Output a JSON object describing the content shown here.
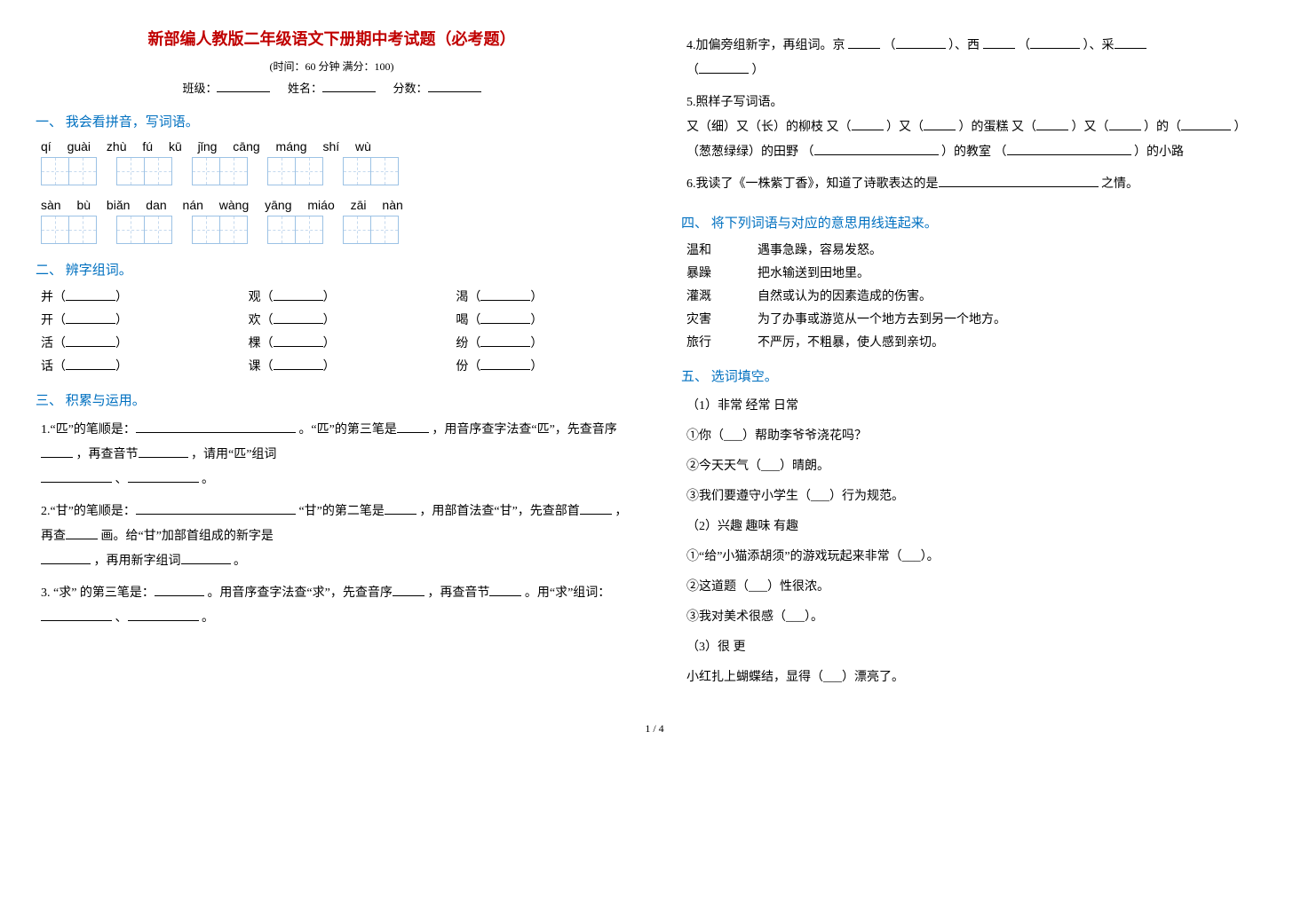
{
  "title": "新部编人教版二年级语文下册期中考试题（必考题）",
  "subtitle": "(时间：60 分钟   满分：100)",
  "meta": {
    "class_label": "班级：",
    "name_label": "姓名：",
    "score_label": "分数："
  },
  "sec1": {
    "head": "一、 我会看拼音，写词语。",
    "row1": {
      "pinyin": "qí    guài    zhù  fú       kū    jǐng     cāng máng    shí    wù",
      "groups": [
        2,
        2,
        2,
        2,
        2
      ]
    },
    "row2": {
      "pinyin": "sàn   bù       biǎn  dan    nán  wàng    yāng miáo     zāi    nàn",
      "groups": [
        2,
        2,
        2,
        2,
        2
      ]
    }
  },
  "sec2": {
    "head": "二、 辨字组词。",
    "rows": [
      [
        "并（",
        "）",
        "观（",
        "）",
        "渴（",
        "）"
      ],
      [
        "开（",
        "）",
        "欢（",
        "）",
        "喝（",
        "）"
      ],
      [
        "活（",
        "）",
        "棵（",
        "）",
        "纷（",
        "）"
      ],
      [
        "话（",
        "）",
        "课（",
        "）",
        "份（",
        "）"
      ]
    ]
  },
  "sec3": {
    "head": "三、 积累与运用。",
    "q1a": "1.“匹”的笔顺是：",
    "q1b": " 。“匹”的第三笔是",
    "q1c": " ，用音序查字法查“匹”，先查音序",
    "q1d": " ，再查音节",
    "q1e": " ，请用“匹”组词",
    "q1f": " 、",
    "q1g": "  。",
    "q2a": "2.“甘”的笔顺是：",
    "q2b": "  “甘”的第二笔是",
    "q2c": " ，用部首法查“甘”，先查部首",
    "q2d": " ，再查",
    "q2e": " 画。给“甘”加部首组成的新字是",
    "q2f": " ，再用新字组词",
    "q2g": " 。",
    "q3a": "3. “求” 的第三笔是：",
    "q3b": "。用音序查字法查“求”，先查音序",
    "q3c": " ，再查音节",
    "q3d": " 。用“求”组词：",
    "q3e": " 、",
    "q3f": "  。",
    "q4a": "4.加偏旁组新字，再组词。京 ",
    "q4b": " （",
    "q4c": "）、西 ",
    "q4d": " （",
    "q4e": "）、采",
    "q4f": "（",
    "q4g": "）",
    "q5a": "5.照样子写词语。",
    "q5b": "又（细）又（长）的柳枝   又（",
    "q5c": "）又（",
    "q5d": "）的蛋糕    又（",
    "q5e": "）又（",
    "q5f": "）的（",
    "q5g": "）",
    "q5h": "（葱葱绿绿）的田野     （",
    "q5i": "）的教室        （",
    "q5j": "）的小路",
    "q6a": "6.我读了《一株紫丁香》，知道了诗歌表达的是",
    "q6b": " 之情。"
  },
  "sec4": {
    "head": "四、 将下列词语与对应的意思用线连起来。",
    "pairs": [
      [
        "温和",
        "遇事急躁，容易发怒。"
      ],
      [
        "暴躁",
        "把水输送到田地里。"
      ],
      [
        "灌溉",
        "自然或认为的因素造成的伤害。"
      ],
      [
        "灾害",
        "为了办事或游览从一个地方去到另一个地方。"
      ],
      [
        "旅行",
        "不严厉，不粗暴，使人感到亲切。"
      ]
    ]
  },
  "sec5": {
    "head": "五、 选词填空。",
    "g1_opts": "（1）非常        经常        日常",
    "g1_q1": "①你（___）帮助李爷爷浇花吗？",
    "g1_q2": "②今天天气（___）晴朗。",
    "g1_q3": "③我们要遵守小学生（___）行为规范。",
    "g2_opts": "（2）兴趣        趣味        有趣",
    "g2_q1": "①“给”小猫添胡须”的游戏玩起来非常（___）。",
    "g2_q2": "②这道题（___）性很浓。",
    "g2_q3": "③我对美术很感（___）。",
    "g3_opts": "（3）很          更",
    "g3_q1": "小红扎上蝴蝶结，显得（___）漂亮了。"
  },
  "pageno": "1 / 4"
}
